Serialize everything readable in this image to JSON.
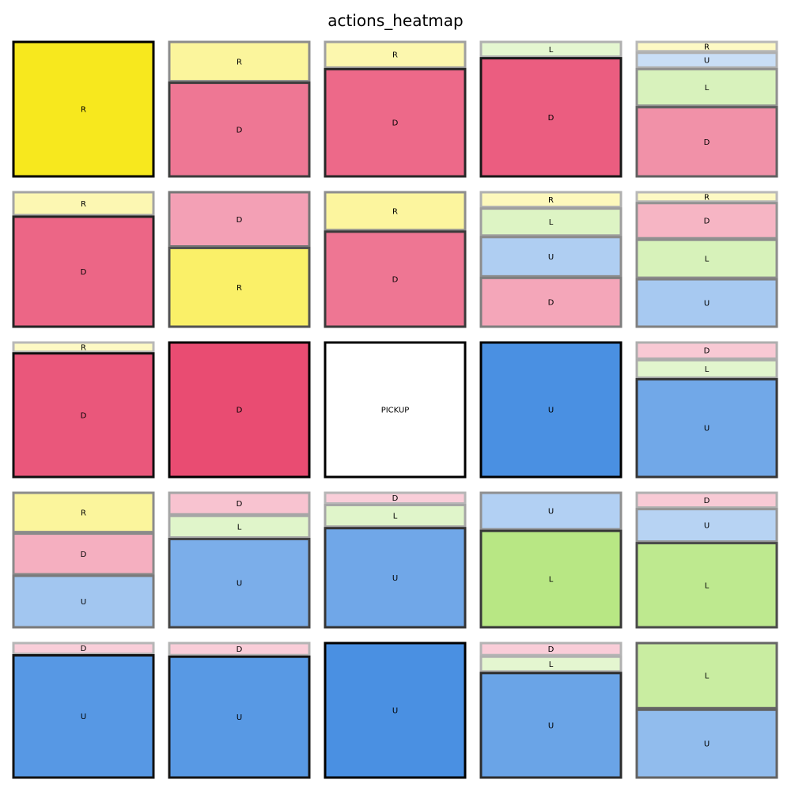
{
  "chart_data": {
    "type": "heatmap",
    "title": "actions_heatmap",
    "rows": 5,
    "cols": 5,
    "colors": {
      "R": "#f7e81e",
      "D": "#e94c72",
      "U": "#4a90e2",
      "L": "#a3e060",
      "PICKUP": "#ffffff"
    },
    "cells": [
      [
        [
          {
            "action": "R",
            "p": 1.0
          }
        ],
        [
          {
            "action": "R",
            "p": 0.3
          },
          {
            "action": "D",
            "p": 0.7
          }
        ],
        [
          {
            "action": "R",
            "p": 0.2
          },
          {
            "action": "D",
            "p": 0.8
          }
        ],
        [
          {
            "action": "L",
            "p": 0.12
          },
          {
            "action": "D",
            "p": 0.88
          }
        ],
        [
          {
            "action": "R",
            "p": 0.08
          },
          {
            "action": "U",
            "p": 0.12
          },
          {
            "action": "L",
            "p": 0.28
          },
          {
            "action": "D",
            "p": 0.52
          }
        ]
      ],
      [
        [
          {
            "action": "R",
            "p": 0.18
          },
          {
            "action": "D",
            "p": 0.82
          }
        ],
        [
          {
            "action": "D",
            "p": 0.41
          },
          {
            "action": "R",
            "p": 0.59
          }
        ],
        [
          {
            "action": "R",
            "p": 0.29
          },
          {
            "action": "D",
            "p": 0.71
          }
        ],
        [
          {
            "action": "R",
            "p": 0.12
          },
          {
            "action": "L",
            "p": 0.21
          },
          {
            "action": "U",
            "p": 0.3
          },
          {
            "action": "D",
            "p": 0.37
          }
        ],
        [
          {
            "action": "R",
            "p": 0.08
          },
          {
            "action": "D",
            "p": 0.27
          },
          {
            "action": "L",
            "p": 0.29
          },
          {
            "action": "U",
            "p": 0.36
          }
        ]
      ],
      [
        [
          {
            "action": "R",
            "p": 0.08
          },
          {
            "action": "D",
            "p": 0.92
          }
        ],
        [
          {
            "action": "D",
            "p": 1.0
          }
        ],
        [
          {
            "action": "PICKUP",
            "p": 1.0
          }
        ],
        [
          {
            "action": "U",
            "p": 1.0
          }
        ],
        [
          {
            "action": "D",
            "p": 0.13
          },
          {
            "action": "L",
            "p": 0.14
          },
          {
            "action": "U",
            "p": 0.73
          }
        ]
      ],
      [
        [
          {
            "action": "R",
            "p": 0.3
          },
          {
            "action": "D",
            "p": 0.31
          },
          {
            "action": "U",
            "p": 0.39
          }
        ],
        [
          {
            "action": "D",
            "p": 0.17
          },
          {
            "action": "L",
            "p": 0.17
          },
          {
            "action": "U",
            "p": 0.66
          }
        ],
        [
          {
            "action": "D",
            "p": 0.09
          },
          {
            "action": "L",
            "p": 0.17
          },
          {
            "action": "U",
            "p": 0.74
          }
        ],
        [
          {
            "action": "U",
            "p": 0.28
          },
          {
            "action": "L",
            "p": 0.72
          }
        ],
        [
          {
            "action": "D",
            "p": 0.12
          },
          {
            "action": "U",
            "p": 0.25
          },
          {
            "action": "L",
            "p": 0.63
          }
        ]
      ],
      [
        [
          {
            "action": "D",
            "p": 0.09
          },
          {
            "action": "U",
            "p": 0.91
          }
        ],
        [
          {
            "action": "D",
            "p": 0.1
          },
          {
            "action": "U",
            "p": 0.9
          }
        ],
        [
          {
            "action": "U",
            "p": 1.0
          }
        ],
        [
          {
            "action": "D",
            "p": 0.1
          },
          {
            "action": "L",
            "p": 0.12
          },
          {
            "action": "U",
            "p": 0.78
          }
        ],
        [
          {
            "action": "L",
            "p": 0.49
          },
          {
            "action": "U",
            "p": 0.51
          }
        ]
      ]
    ]
  }
}
